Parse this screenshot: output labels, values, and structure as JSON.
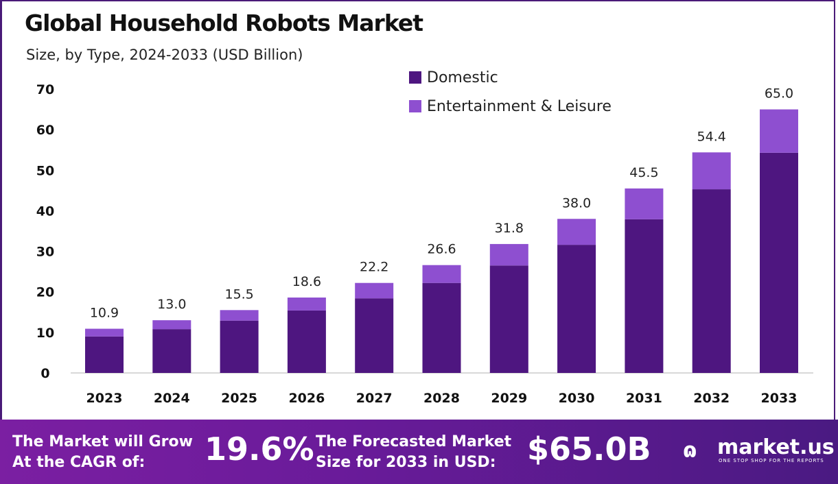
{
  "chart_data": {
    "type": "bar",
    "stacked": true,
    "title": "Global Household Robots Market",
    "subtitle": "Size, by Type, 2024-2033 (USD Billion)",
    "categories": [
      "2023",
      "2024",
      "2025",
      "2026",
      "2027",
      "2028",
      "2029",
      "2030",
      "2031",
      "2032",
      "2033"
    ],
    "series": [
      {
        "name": "Domestic",
        "color": "#4e1680",
        "values": [
          9.0,
          10.8,
          12.9,
          15.4,
          18.4,
          22.2,
          26.5,
          31.6,
          37.9,
          45.3,
          54.3
        ]
      },
      {
        "name": "Entertainment & Leisure",
        "color": "#8e4fd0",
        "values": [
          1.9,
          2.2,
          2.6,
          3.2,
          3.8,
          4.4,
          5.3,
          6.4,
          7.6,
          9.1,
          10.7
        ]
      }
    ],
    "totals": [
      "10.9",
      "13.0",
      "15.5",
      "18.6",
      "22.2",
      "26.6",
      "31.8",
      "38.0",
      "45.5",
      "54.4",
      "65.0"
    ],
    "yticks": [
      "0",
      "10",
      "20",
      "30",
      "40",
      "50",
      "60",
      "70"
    ],
    "ylim": [
      0,
      70
    ],
    "grid": false,
    "legend_position": "top-center"
  },
  "footer": {
    "cagr_label_1": "The Market will Grow",
    "cagr_label_2": "At the CAGR of:",
    "cagr_value": "19.6%",
    "forecast_label_1": "The Forecasted Market",
    "forecast_label_2": "Size for 2033 in USD:",
    "forecast_value": "$65.0B",
    "logo_name": "market.us",
    "logo_tagline": "ONE STOP SHOP FOR THE REPORTS"
  }
}
